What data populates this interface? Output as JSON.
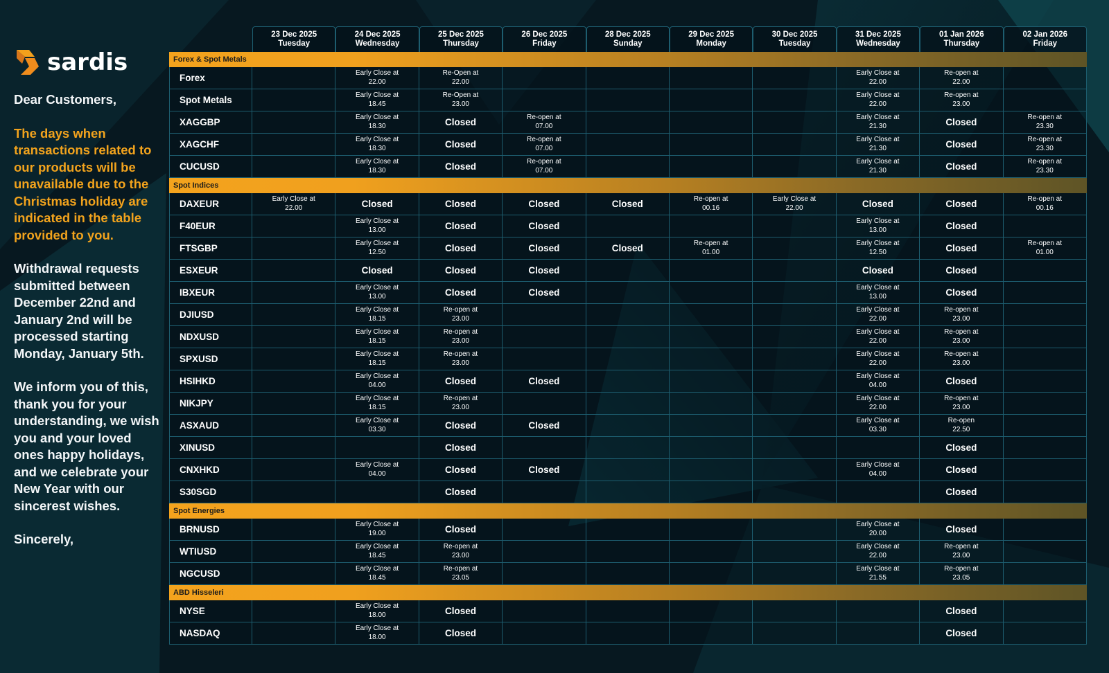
{
  "brand": {
    "name": "sardis"
  },
  "colors": {
    "accent": "#f2a31d",
    "background": "#071a22",
    "grid": "#1d5d6f"
  },
  "letter": {
    "greeting": "Dear Customers,",
    "highlight": "The days when transactions related to our products will be unavailable due to the Christmas holiday are indicated in the table provided to you.",
    "withdrawal": "Withdrawal requests submitted between December 22nd and January 2nd will be processed starting Monday, January 5th.",
    "wishes": "We inform you of this, thank you for your understanding, we wish you and your loved ones happy holidays, and we celebrate your New Year with our sincerest wishes.",
    "closing": "Sincerely,"
  },
  "columns": [
    {
      "date": "23 Dec 2025",
      "day": "Tuesday"
    },
    {
      "date": "24 Dec 2025",
      "day": "Wednesday"
    },
    {
      "date": "25 Dec 2025",
      "day": "Thursday"
    },
    {
      "date": "26 Dec 2025",
      "day": "Friday"
    },
    {
      "date": "28 Dec 2025",
      "day": "Sunday"
    },
    {
      "date": "29 Dec 2025",
      "day": "Monday"
    },
    {
      "date": "30 Dec 2025",
      "day": "Tuesday"
    },
    {
      "date": "31 Dec 2025",
      "day": "Wednesday"
    },
    {
      "date": "01 Jan 2026",
      "day": "Thursday"
    },
    {
      "date": "02 Jan 2026",
      "day": "Friday"
    }
  ],
  "sections": [
    {
      "title": "Forex & Spot Metals",
      "rows": [
        {
          "name": "Forex",
          "cells": [
            "",
            "Early Close at|22.00",
            "Re-Open at|22.00",
            "",
            "",
            "",
            "",
            "Early Close at|22.00",
            "Re-open at|22.00",
            ""
          ]
        },
        {
          "name": "Spot Metals",
          "cells": [
            "",
            "Early Close at|18.45",
            "Re-Open at|23.00",
            "",
            "",
            "",
            "",
            "Early Close at|22.00",
            "Re-open at|23.00",
            ""
          ]
        },
        {
          "name": "XAGGBP",
          "cells": [
            "",
            "Early Close at|18.30",
            "Closed",
            "Re-open at|07.00",
            "",
            "",
            "",
            "Early Close at|21.30",
            "Closed",
            "Re-open at|23.30"
          ]
        },
        {
          "name": "XAGCHF",
          "cells": [
            "",
            "Early Close at|18.30",
            "Closed",
            "Re-open at|07.00",
            "",
            "",
            "",
            "Early Close at|21.30",
            "Closed",
            "Re-open at|23.30"
          ]
        },
        {
          "name": "CUCUSD",
          "cells": [
            "",
            "Early Close at|18.30",
            "Closed",
            "Re-open at|07.00",
            "",
            "",
            "",
            "Early Close at|21.30",
            "Closed",
            "Re-open at|23.30"
          ]
        }
      ]
    },
    {
      "title": "Spot Indices",
      "rows": [
        {
          "name": "DAXEUR",
          "cells": [
            "Early Close at|22.00",
            "Closed",
            "Closed",
            "Closed",
            "Closed",
            "Re-open at|00.16",
            "Early Close at|22.00",
            "Closed",
            "Closed",
            "Re-open at|00.16"
          ]
        },
        {
          "name": "F40EUR",
          "cells": [
            "",
            "Early Close at|13.00",
            "Closed",
            "Closed",
            "",
            "",
            "",
            "Early Close at|13.00",
            "Closed",
            ""
          ]
        },
        {
          "name": "FTSGBP",
          "cells": [
            "",
            "Early Close at|12.50",
            "Closed",
            "Closed",
            "Closed",
            "Re-open at|01.00",
            "",
            "Early Close at|12.50",
            "Closed",
            "Re-open at|01.00"
          ]
        },
        {
          "name": "ESXEUR",
          "cells": [
            "",
            "Closed",
            "Closed",
            "Closed",
            "",
            "",
            "",
            "Closed",
            "Closed",
            ""
          ]
        },
        {
          "name": "IBXEUR",
          "cells": [
            "",
            "Early Close at|13.00",
            "Closed",
            "Closed",
            "",
            "",
            "",
            "Early Close at|13.00",
            "Closed",
            ""
          ]
        },
        {
          "name": "DJIUSD",
          "cells": [
            "",
            "Early Close at|18.15",
            "Re-open at|23.00",
            "",
            "",
            "",
            "",
            "Early Close at|22.00",
            "Re-open at|23.00",
            ""
          ]
        },
        {
          "name": "NDXUSD",
          "cells": [
            "",
            "Early Close at|18.15",
            "Re-open at|23.00",
            "",
            "",
            "",
            "",
            "Early Close at|22.00",
            "Re-open at|23.00",
            ""
          ]
        },
        {
          "name": "SPXUSD",
          "cells": [
            "",
            "Early Close at|18.15",
            "Re-open at|23.00",
            "",
            "",
            "",
            "",
            "Early Close at|22.00",
            "Re-open at|23.00",
            ""
          ]
        },
        {
          "name": "HSIHKD",
          "cells": [
            "",
            "Early Close at|04.00",
            "Closed",
            "Closed",
            "",
            "",
            "",
            "Early Close at|04.00",
            "Closed",
            ""
          ]
        },
        {
          "name": "NIKJPY",
          "cells": [
            "",
            "Early Close at|18.15",
            "Re-open at|23.00",
            "",
            "",
            "",
            "",
            "Early Close at|22.00",
            "Re-open at|23.00",
            ""
          ]
        },
        {
          "name": "ASXAUD",
          "cells": [
            "",
            "Early Close at|03.30",
            "Closed",
            "Closed",
            "",
            "",
            "",
            "Early Close at|03.30",
            "Re-open|22.50",
            ""
          ]
        },
        {
          "name": "XINUSD",
          "cells": [
            "",
            "",
            "Closed",
            "",
            "",
            "",
            "",
            "",
            "Closed",
            ""
          ]
        },
        {
          "name": "CNXHKD",
          "cells": [
            "",
            "Early Close at|04.00",
            "Closed",
            "Closed",
            "",
            "",
            "",
            "Early Close at|04.00",
            "Closed",
            ""
          ]
        },
        {
          "name": "S30SGD",
          "cells": [
            "",
            "",
            "Closed",
            "",
            "",
            "",
            "",
            "",
            "Closed",
            ""
          ]
        }
      ]
    },
    {
      "title": "Spot Energies",
      "rows": [
        {
          "name": "BRNUSD",
          "cells": [
            "",
            "Early Close at|19.00",
            "Closed",
            "",
            "",
            "",
            "",
            "Early Close at|20.00",
            "Closed",
            ""
          ]
        },
        {
          "name": "WTIUSD",
          "cells": [
            "",
            "Early Close at|18.45",
            "Re-open at|23.00",
            "",
            "",
            "",
            "",
            "Early Close at|22.00",
            "Re-open at|23.00",
            ""
          ]
        },
        {
          "name": "NGCUSD",
          "cells": [
            "",
            "Early Close at|18.45",
            "Re-open at|23.05",
            "",
            "",
            "",
            "",
            "Early Close at|21.55",
            "Re-open at|23.05",
            ""
          ]
        }
      ]
    },
    {
      "title": "ABD Hisseleri",
      "rows": [
        {
          "name": "NYSE",
          "cells": [
            "",
            "Early Close at|18.00",
            "Closed",
            "",
            "",
            "",
            "",
            "",
            "Closed",
            ""
          ]
        },
        {
          "name": "NASDAQ",
          "cells": [
            "",
            "Early Close at|18.00",
            "Closed",
            "",
            "",
            "",
            "",
            "",
            "Closed",
            ""
          ]
        }
      ]
    }
  ]
}
